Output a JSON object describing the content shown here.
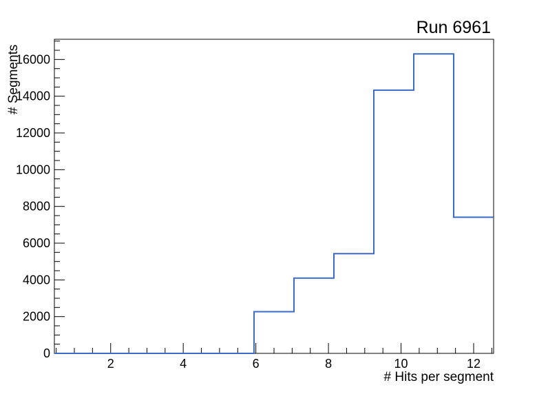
{
  "page": {
    "background_color": "#ffffff",
    "text_color": "#000000"
  },
  "chart_data": {
    "type": "line",
    "subtype": "step-histogram",
    "title": "Run 6961",
    "xlabel": "# Hits per segment",
    "ylabel": "# Segments",
    "bin_edges": [
      0.45,
      1.55,
      2.65,
      3.75,
      4.85,
      5.95,
      7.05,
      8.15,
      9.25,
      10.35,
      11.45,
      12.55
    ],
    "counts": [
      0,
      0,
      0,
      0,
      0,
      2270,
      4100,
      5430,
      14330,
      16300,
      7410
    ],
    "xlim": [
      0.45,
      12.55
    ],
    "ylim": [
      0,
      17100
    ],
    "x_major_ticks": [
      {
        "value": 2,
        "label": "2"
      },
      {
        "value": 4,
        "label": "4"
      },
      {
        "value": 6,
        "label": "6"
      },
      {
        "value": 8,
        "label": "8"
      },
      {
        "value": 10,
        "label": "10"
      },
      {
        "value": 12,
        "label": "12"
      }
    ],
    "x_minor_step": 0.5,
    "y_major_ticks": [
      {
        "value": 0,
        "label": "0"
      },
      {
        "value": 2000,
        "label": "2000"
      },
      {
        "value": 4000,
        "label": "4000"
      },
      {
        "value": 6000,
        "label": "6000"
      },
      {
        "value": 8000,
        "label": "8000"
      },
      {
        "value": 10000,
        "label": "10000"
      },
      {
        "value": 12000,
        "label": "12000"
      },
      {
        "value": 14000,
        "label": "14000"
      },
      {
        "value": 16000,
        "label": "16000"
      }
    ],
    "y_minor_step": 500,
    "line_color": "#3a69c6",
    "axis_color": "#000000",
    "grid": false,
    "legend_position": "none"
  }
}
